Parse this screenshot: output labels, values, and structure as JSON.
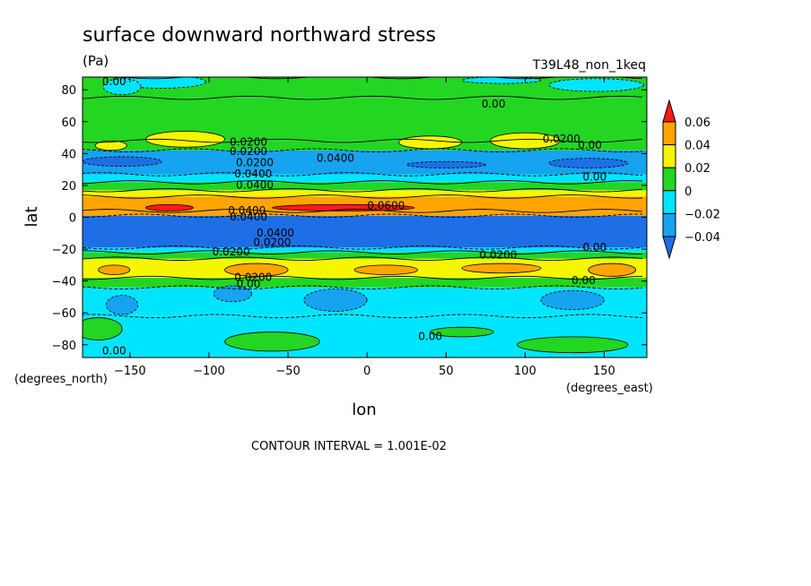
{
  "chart_data": {
    "type": "heatmap",
    "title": "surface downward northward stress",
    "units": "(Pa)",
    "run_label": "T39L48_non_1keq",
    "xlabel": "lon",
    "ylabel": "lat",
    "x_units": "(degrees_east)",
    "y_units": "(degrees_north)",
    "contour_interval_text": "CONTOUR INTERVAL = 1.001E-02",
    "xlim": [
      -180,
      177
    ],
    "ylim": [
      -88,
      88
    ],
    "x_ticks": [
      -150,
      -100,
      -50,
      0,
      50,
      100,
      150
    ],
    "x_tick_labels": [
      "−150",
      "−100",
      "−50",
      "0",
      "50",
      "100",
      "150"
    ],
    "y_ticks": [
      -80,
      -60,
      -40,
      -20,
      0,
      20,
      40,
      60,
      80
    ],
    "y_tick_labels": [
      "−80",
      "−60",
      "−40",
      "−20",
      "0",
      "20",
      "40",
      "60",
      "80"
    ],
    "colorbar": {
      "levels": [
        -0.04,
        -0.02,
        0,
        0.02,
        0.04,
        0.06
      ],
      "labels": [
        "−0.04",
        "−0.02",
        "0",
        "0.02",
        "0.04",
        "0.06"
      ],
      "colors": [
        "#1e6fe6",
        "#16a3f0",
        "#00e5ff",
        "#22d622",
        "#f6f600",
        "#ffa500",
        "#ff1a1a"
      ]
    },
    "zonal_bands": [
      {
        "lat_min": -88,
        "lat_max": -62,
        "value": -0.01
      },
      {
        "lat_min": -62,
        "lat_max": -44,
        "value": -0.01
      },
      {
        "lat_min": -44,
        "lat_max": -38,
        "value": 0.01
      },
      {
        "lat_min": -38,
        "lat_max": -26,
        "value": 0.03
      },
      {
        "lat_min": -26,
        "lat_max": -22,
        "value": 0.01
      },
      {
        "lat_min": -22,
        "lat_max": -19,
        "value": -0.01
      },
      {
        "lat_min": -19,
        "lat_max": 1,
        "value": -0.05
      },
      {
        "lat_min": 1,
        "lat_max": 4,
        "value": 0.05
      },
      {
        "lat_min": 4,
        "lat_max": 13,
        "value": 0.05
      },
      {
        "lat_min": 13,
        "lat_max": 17,
        "value": 0.03
      },
      {
        "lat_min": 17,
        "lat_max": 22,
        "value": 0.01
      },
      {
        "lat_min": 22,
        "lat_max": 27,
        "value": -0.01
      },
      {
        "lat_min": 27,
        "lat_max": 42,
        "value": -0.03
      },
      {
        "lat_min": 42,
        "lat_max": 48,
        "value": 0.01
      },
      {
        "lat_min": 48,
        "lat_max": 75,
        "value": 0.01
      },
      {
        "lat_min": 75,
        "lat_max": 88,
        "value": 0.01
      }
    ],
    "features": [
      {
        "lon": -130,
        "lat": 85,
        "rx": 28,
        "ry": 4,
        "value": -0.01
      },
      {
        "lon": -155,
        "lat": 82,
        "rx": 12,
        "ry": 5,
        "value": -0.01
      },
      {
        "lon": 145,
        "lat": 83,
        "rx": 30,
        "ry": 4,
        "value": -0.01
      },
      {
        "lon": 85,
        "lat": 86,
        "rx": 25,
        "ry": 2,
        "value": -0.01
      },
      {
        "lon": -162,
        "lat": 45,
        "rx": 10,
        "ry": 3,
        "value": 0.03
      },
      {
        "lon": -115,
        "lat": 49,
        "rx": 25,
        "ry": 5,
        "value": 0.03
      },
      {
        "lon": 40,
        "lat": 47,
        "rx": 20,
        "ry": 4,
        "value": 0.03
      },
      {
        "lon": 100,
        "lat": 48,
        "rx": 22,
        "ry": 5,
        "value": 0.03
      },
      {
        "lon": -155,
        "lat": 35,
        "rx": 25,
        "ry": 3,
        "value": -0.05
      },
      {
        "lon": 140,
        "lat": 34,
        "rx": 25,
        "ry": 3,
        "value": -0.05
      },
      {
        "lon": 50,
        "lat": 33,
        "rx": 25,
        "ry": 2,
        "value": -0.05
      },
      {
        "lon": -125,
        "lat": 6,
        "rx": 15,
        "ry": 2,
        "value": 0.07
      },
      {
        "lon": -15,
        "lat": 6,
        "rx": 45,
        "ry": 2,
        "value": 0.07
      },
      {
        "lon": -160,
        "lat": -33,
        "rx": 10,
        "ry": 3,
        "value": 0.05
      },
      {
        "lon": -70,
        "lat": -33,
        "rx": 20,
        "ry": 4,
        "value": 0.05
      },
      {
        "lon": 12,
        "lat": -33,
        "rx": 20,
        "ry": 3,
        "value": 0.05
      },
      {
        "lon": 85,
        "lat": -32,
        "rx": 25,
        "ry": 3,
        "value": 0.05
      },
      {
        "lon": 155,
        "lat": -33,
        "rx": 15,
        "ry": 4,
        "value": 0.05
      },
      {
        "lon": -155,
        "lat": -55,
        "rx": 10,
        "ry": 6,
        "value": -0.03
      },
      {
        "lon": -85,
        "lat": -48,
        "rx": 12,
        "ry": 5,
        "value": -0.03
      },
      {
        "lon": -20,
        "lat": -52,
        "rx": 20,
        "ry": 7,
        "value": -0.03
      },
      {
        "lon": 130,
        "lat": -52,
        "rx": 20,
        "ry": 6,
        "value": -0.03
      },
      {
        "lon": -170,
        "lat": -70,
        "rx": 15,
        "ry": 7,
        "value": 0.01
      },
      {
        "lon": -60,
        "lat": -78,
        "rx": 30,
        "ry": 6,
        "value": 0.01
      },
      {
        "lon": 130,
        "lat": -80,
        "rx": 35,
        "ry": 5,
        "value": 0.01
      },
      {
        "lon": 60,
        "lat": -72,
        "rx": 20,
        "ry": 3,
        "value": 0.01
      }
    ],
    "contour_labels": [
      {
        "text": "0.00",
        "lon": -160,
        "lat": 83
      },
      {
        "text": "0.00",
        "lon": 80,
        "lat": 69
      },
      {
        "text": "0.0200",
        "lon": -75,
        "lat": 45
      },
      {
        "text": "0.0200",
        "lon": 123,
        "lat": 47
      },
      {
        "text": "0.00",
        "lon": 141,
        "lat": 43
      },
      {
        "text": "0.0200",
        "lon": -75,
        "lat": 39
      },
      {
        "text": "0.0200",
        "lon": -71,
        "lat": 32
      },
      {
        "text": "0.0400",
        "lon": -20,
        "lat": 35
      },
      {
        "text": "0.00",
        "lon": 144,
        "lat": 23
      },
      {
        "text": "0.0400",
        "lon": -72,
        "lat": 25
      },
      {
        "text": "0.0400",
        "lon": -71,
        "lat": 18
      },
      {
        "text": "0.0600",
        "lon": 12,
        "lat": 5
      },
      {
        "text": "0.0400",
        "lon": -76,
        "lat": 2
      },
      {
        "text": "0.0400",
        "lon": -75,
        "lat": -2
      },
      {
        "text": "0.0400",
        "lon": -58,
        "lat": -12
      },
      {
        "text": "0.0200",
        "lon": -60,
        "lat": -18
      },
      {
        "text": "0.0200",
        "lon": -86,
        "lat": -24
      },
      {
        "text": "0.0200",
        "lon": 83,
        "lat": -26
      },
      {
        "text": "0.00",
        "lon": 144,
        "lat": -21
      },
      {
        "text": "0.0200",
        "lon": -72,
        "lat": -40
      },
      {
        "text": "0.00",
        "lon": -75,
        "lat": -44
      },
      {
        "text": "0.00",
        "lon": 137,
        "lat": -42
      },
      {
        "text": "0.00",
        "lon": 40,
        "lat": -77
      },
      {
        "text": "0.00",
        "lon": -160,
        "lat": -86
      }
    ]
  }
}
